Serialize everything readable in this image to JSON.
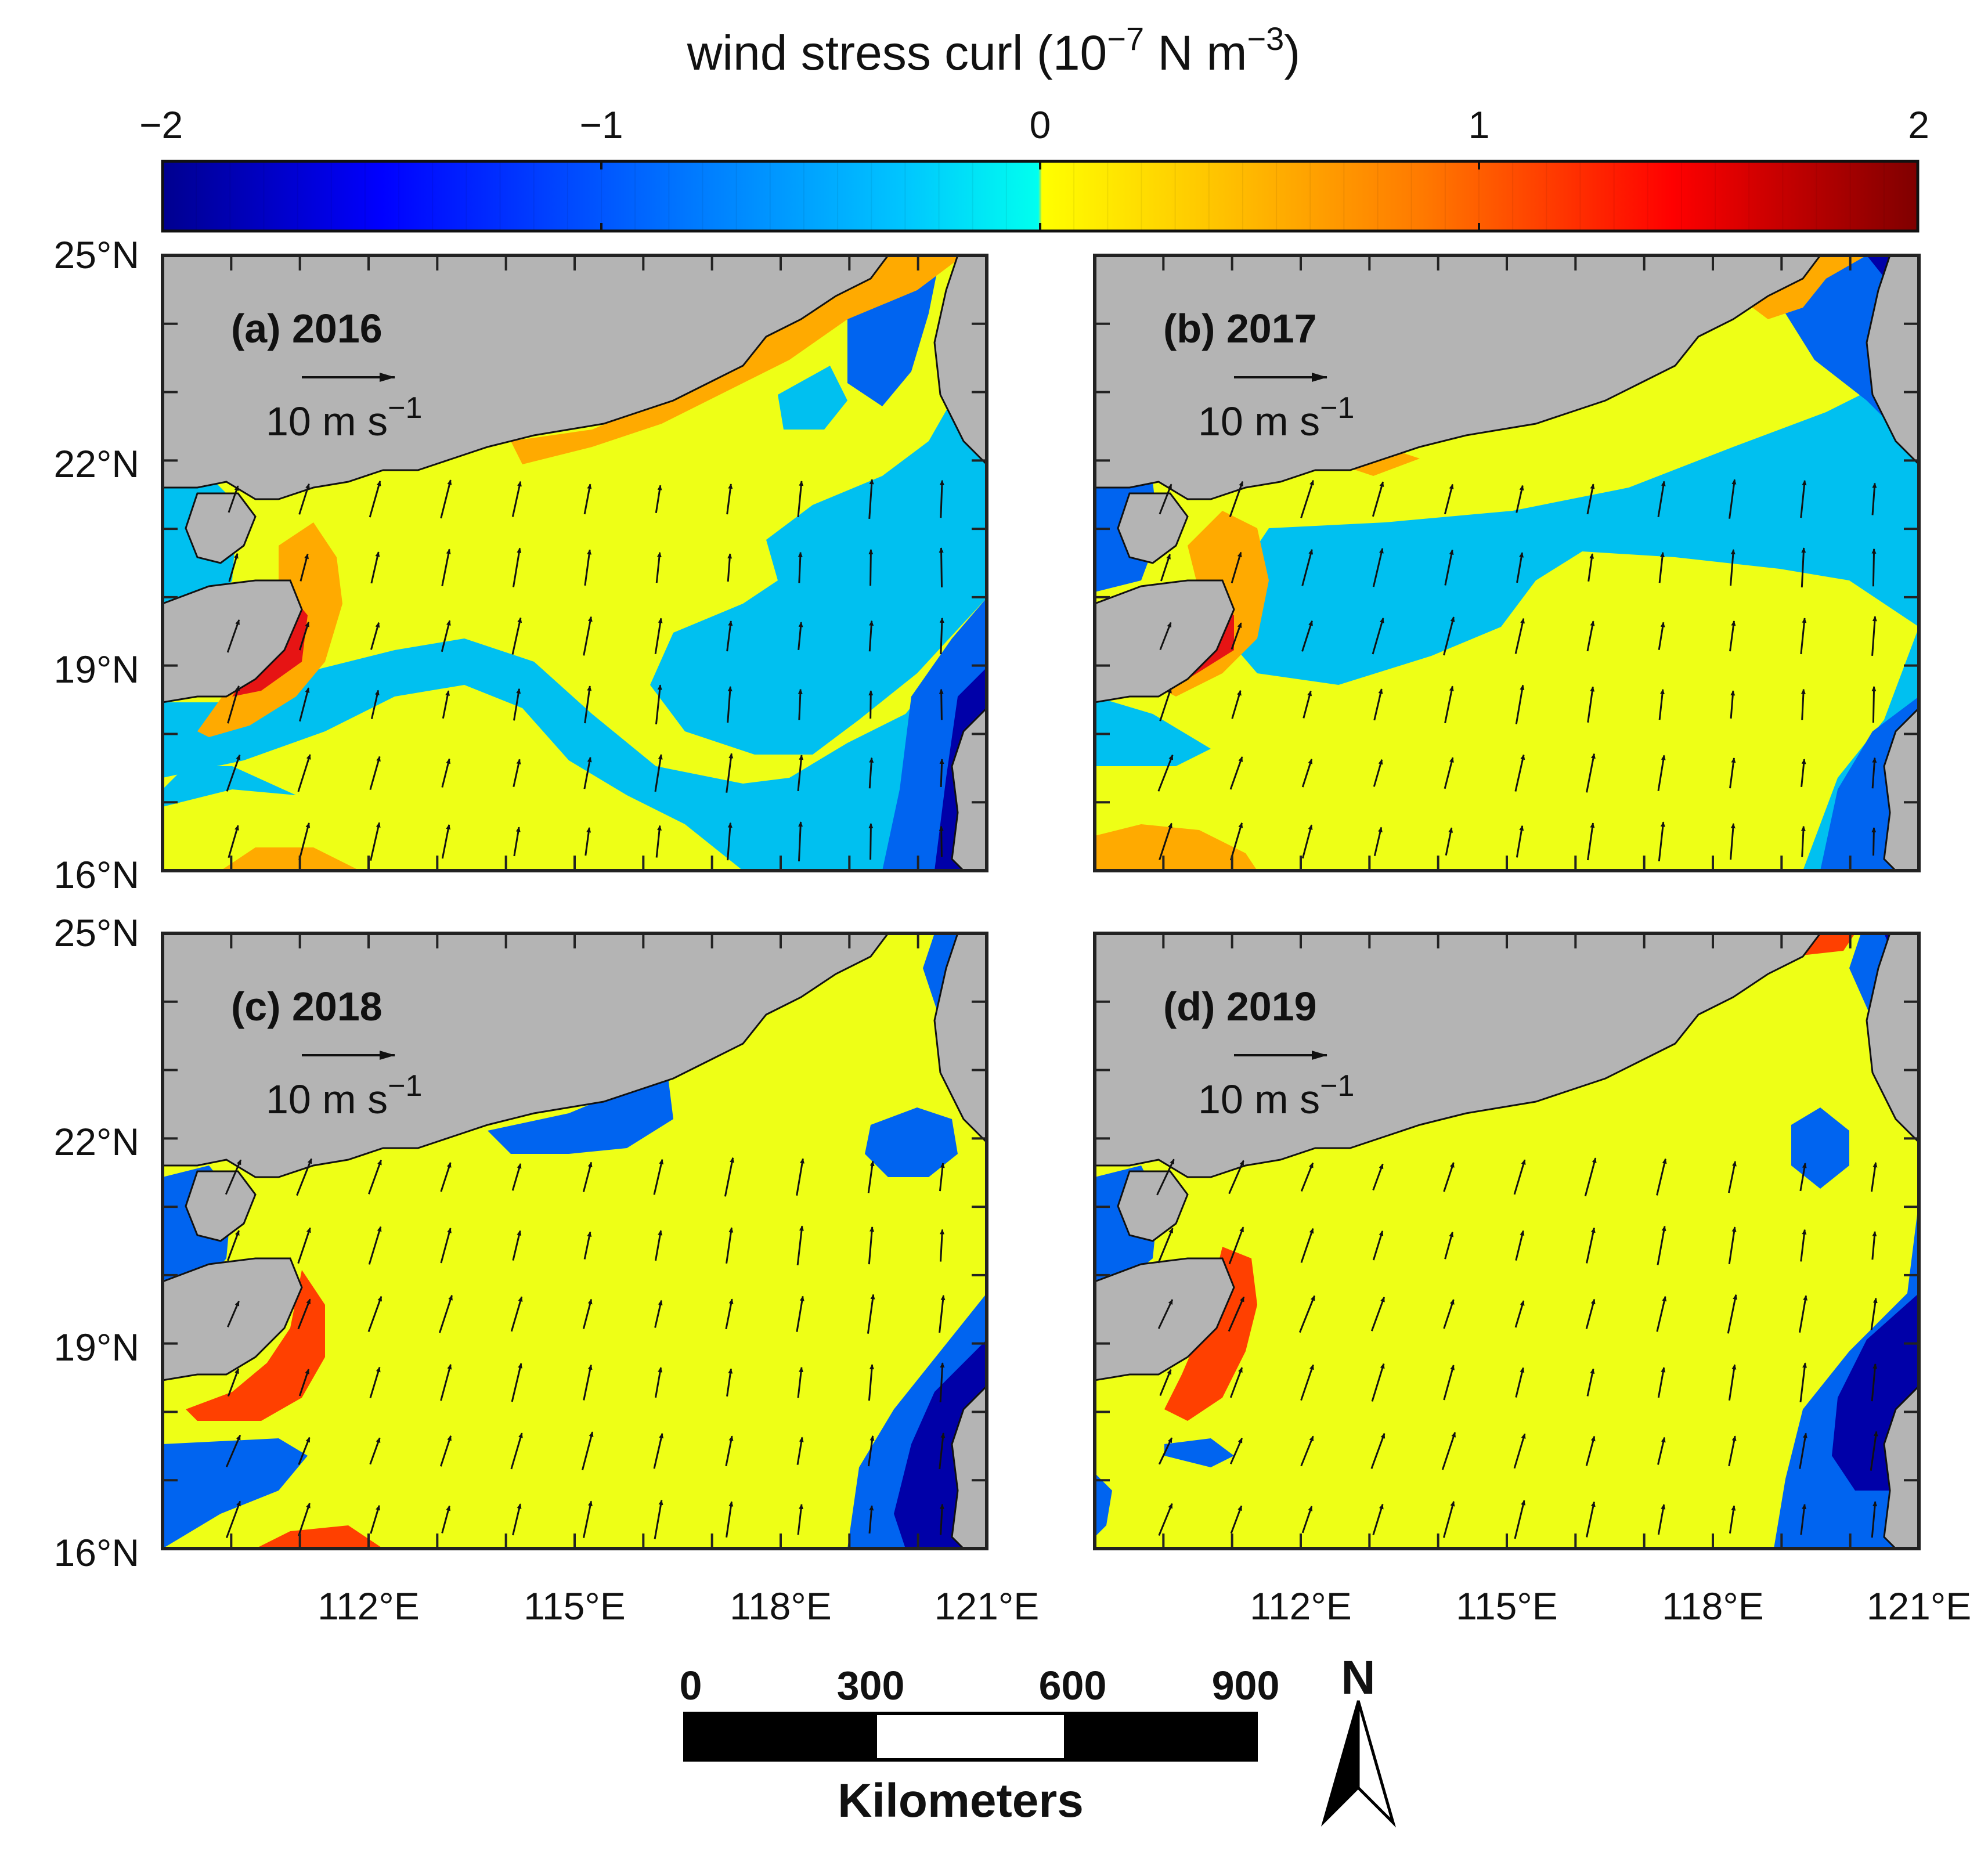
{
  "colorbar": {
    "title": "wind stress curl (10",
    "title_exp": "−7",
    "title_mid": " N m",
    "title_exp2": "−3",
    "title_end": ")",
    "ticks": [
      {
        "value": -2,
        "label": "−2"
      },
      {
        "value": -1,
        "label": "−1"
      },
      {
        "value": 0,
        "label": "0"
      },
      {
        "value": 1,
        "label": "1"
      },
      {
        "value": 2,
        "label": "2"
      }
    ],
    "range": [
      -2,
      2
    ],
    "colormap": "jet",
    "colors_negative": [
      "#00008f",
      "#0000ff",
      "#0080ff",
      "#00c8ff",
      "#00ffff"
    ],
    "colors_positive": [
      "#ffff00",
      "#ffc000",
      "#ff8000",
      "#ff2000",
      "#800000"
    ]
  },
  "map": {
    "lon_range": [
      109,
      121
    ],
    "lat_range": [
      16,
      25
    ],
    "x_ticks": [
      {
        "value": 112,
        "label": "112°E"
      },
      {
        "value": 115,
        "label": "115°E"
      },
      {
        "value": 118,
        "label": "118°E"
      },
      {
        "value": 121,
        "label": "121°E"
      }
    ],
    "y_ticks": [
      {
        "value": 25,
        "label": "25°N"
      },
      {
        "value": 22,
        "label": "22°N"
      },
      {
        "value": 19,
        "label": "19°N"
      },
      {
        "value": 16,
        "label": "16°N"
      }
    ],
    "land_color": "#b4b4b4",
    "fill_positive_color": "#eeff16",
    "fill_negative_color": "#00c0f0"
  },
  "panels": [
    {
      "id": "a",
      "label": "(a) 2016",
      "ref_label": "10 m s",
      "ref_exp": "−1"
    },
    {
      "id": "b",
      "label": "(b) 2017",
      "ref_label": "10 m s",
      "ref_exp": "−1"
    },
    {
      "id": "c",
      "label": "(c) 2018",
      "ref_label": "10 m s",
      "ref_exp": "−1"
    },
    {
      "id": "d",
      "label": "(d) 2019",
      "ref_label": "10 m s",
      "ref_exp": "−1"
    }
  ],
  "scale_bar": {
    "ticks": [
      "0",
      "300",
      "600",
      "900"
    ],
    "unit": "Kilometers"
  },
  "north_arrow": {
    "label": "N"
  }
}
